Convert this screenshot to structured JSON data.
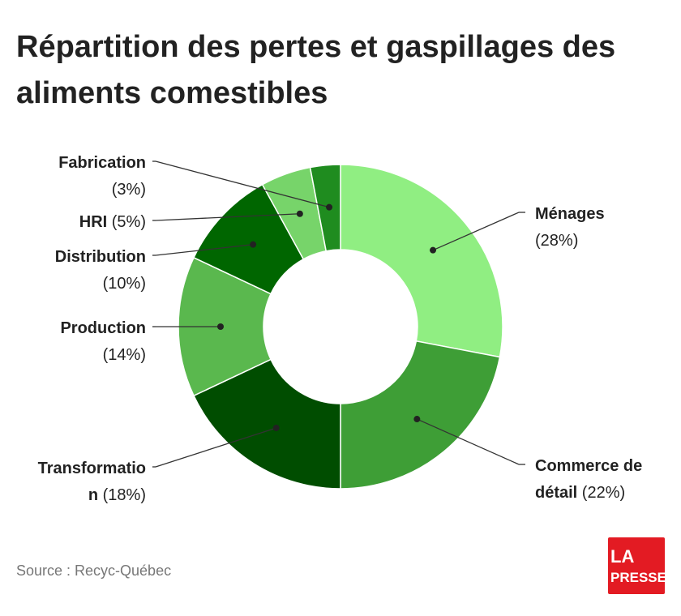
{
  "chart_data": {
    "type": "pie",
    "title_lines": [
      "Répartition des pertes et gaspillages des",
      "aliments comestibles"
    ],
    "categories": [
      "Ménages",
      "Commerce de détail",
      "Transformation",
      "Production",
      "Distribution",
      "HRI",
      "Fabrication"
    ],
    "values": [
      28,
      22,
      18,
      14,
      10,
      5,
      3
    ],
    "unit": "%",
    "slices": [
      {
        "name_lines": [
          "Ménages"
        ],
        "pct": "(28%)",
        "value": 28,
        "color": "#90ee82"
      },
      {
        "name_lines": [
          "Commerce de",
          "détail"
        ],
        "pct": "(22%)",
        "value": 22,
        "color": "#3e9e36"
      },
      {
        "name_lines": [
          "Transformatio",
          "n"
        ],
        "pct": "(18%)",
        "value": 18,
        "color": "#004d00"
      },
      {
        "name_lines": [
          "Production"
        ],
        "pct": "(14%)",
        "value": 14,
        "color": "#5ab84e"
      },
      {
        "name_lines": [
          "Distribution"
        ],
        "pct": "(10%)",
        "value": 10,
        "color": "#006600"
      },
      {
        "name_lines": [
          "HRI"
        ],
        "pct": "(5%)",
        "value": 5,
        "color": "#77d46a"
      },
      {
        "name_lines": [
          "Fabrication"
        ],
        "pct": "(3%)",
        "value": 3,
        "color": "#1f8c1f"
      }
    ]
  },
  "source": "Source : Recyc-Québec",
  "logo": {
    "line1": "LA",
    "line2": "PRESSE",
    "color": "#e31b23"
  }
}
